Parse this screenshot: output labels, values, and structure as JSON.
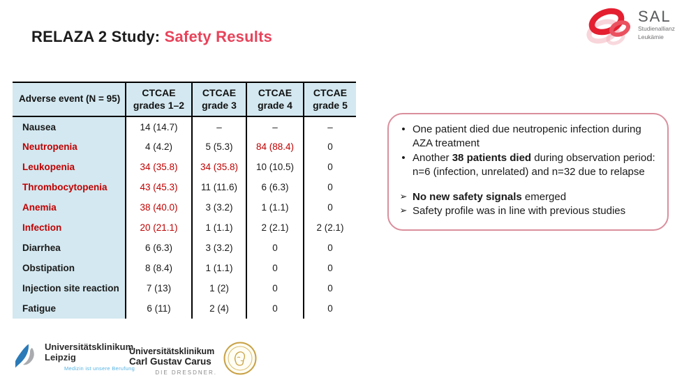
{
  "title": {
    "prefix": "RELAZA 2 Study: ",
    "highlight": "Safety Results"
  },
  "sal_logo": {
    "name": "SAL",
    "sub1": "Studienallianz",
    "sub2": "Leukämie"
  },
  "table": {
    "headers": [
      "Adverse event (N = 95)",
      "CTCAE\ngrades 1–2",
      "CTCAE\ngrade 3",
      "CTCAE\ngrade 4",
      "CTCAE\ngrade 5"
    ],
    "rows": [
      {
        "label": "Nausea",
        "label_red": false,
        "values": [
          "14 (14.7)",
          "–",
          "–",
          "–"
        ],
        "red_values": [
          false,
          false,
          false,
          false
        ]
      },
      {
        "label": "Neutropenia",
        "label_red": true,
        "values": [
          "4 (4.2)",
          "5 (5.3)",
          "84 (88.4)",
          "0"
        ],
        "red_values": [
          false,
          false,
          true,
          false
        ]
      },
      {
        "label": "Leukopenia",
        "label_red": true,
        "values": [
          "34 (35.8)",
          "34 (35.8)",
          "10 (10.5)",
          "0"
        ],
        "red_values": [
          true,
          true,
          false,
          false
        ]
      },
      {
        "label": "Thrombocytopenia",
        "label_red": true,
        "values": [
          "43 (45.3)",
          "11 (11.6)",
          "6 (6.3)",
          "0"
        ],
        "red_values": [
          true,
          false,
          false,
          false
        ]
      },
      {
        "label": "Anemia",
        "label_red": true,
        "values": [
          "38 (40.0)",
          "3 (3.2)",
          "1 (1.1)",
          "0"
        ],
        "red_values": [
          true,
          false,
          false,
          false
        ]
      },
      {
        "label": "Infection",
        "label_red": true,
        "values": [
          "20 (21.1)",
          "1 (1.1)",
          "2 (2.1)",
          "2 (2.1)"
        ],
        "red_values": [
          true,
          false,
          false,
          false
        ]
      },
      {
        "label": "Diarrhea",
        "label_red": false,
        "values": [
          "6 (6.3)",
          "3 (3.2)",
          "0",
          "0"
        ],
        "red_values": [
          false,
          false,
          false,
          false
        ]
      },
      {
        "label": "Obstipation",
        "label_red": false,
        "values": [
          "8 (8.4)",
          "1 (1.1)",
          "0",
          "0"
        ],
        "red_values": [
          false,
          false,
          false,
          false
        ]
      },
      {
        "label": "Injection site reaction",
        "label_red": false,
        "values": [
          "7 (13)",
          "1 (2)",
          "0",
          "0"
        ],
        "red_values": [
          false,
          false,
          false,
          false
        ]
      },
      {
        "label": "Fatigue",
        "label_red": false,
        "values": [
          "6 (11)",
          "2 (4)",
          "0",
          "0"
        ],
        "red_values": [
          false,
          false,
          false,
          false
        ]
      }
    ]
  },
  "callout": {
    "bullets": [
      {
        "marker": "•",
        "pre": "One patient died due neutropenic infection during AZA treatment",
        "bold": "",
        "post": "",
        "gap_before": false
      },
      {
        "marker": "•",
        "pre": "Another ",
        "bold": "38 patients died",
        "post": " during observation period: n=6 (infection, unrelated) and n=32 due to relapse",
        "gap_before": false
      },
      {
        "marker": "➢",
        "pre": "",
        "bold": "No new safety signals",
        "post": " emerged",
        "gap_before": true
      },
      {
        "marker": "➢",
        "pre": "Safety profile was in line with previous studies",
        "bold": "",
        "post": "",
        "gap_before": false
      }
    ]
  },
  "footer": {
    "leipzig": {
      "line1": "Universitätsklinikum",
      "line2": "Leipzig",
      "tagline": "Medizin ist unsere Berufung"
    },
    "dresden": {
      "line1": "Universitätsklinikum",
      "line2": "Carl Gustav Carus",
      "line3": "DIE DRESDNER."
    }
  },
  "colors": {
    "accent_red": "#c00000",
    "title_red": "#e8435a",
    "header_blue": "#d3e8f0",
    "callout_border": "#da8e9c"
  }
}
